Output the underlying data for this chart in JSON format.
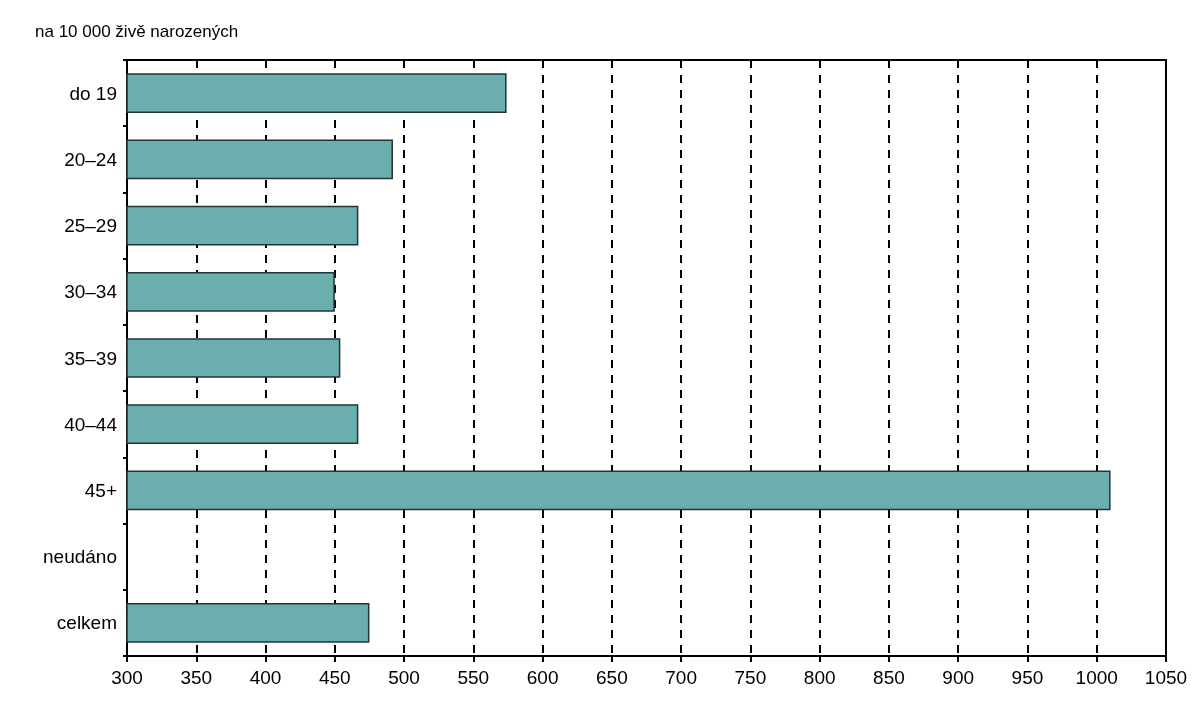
{
  "chart_data": {
    "type": "bar",
    "orientation": "horizontal",
    "title": "na 10 000 živě narozených",
    "categories": [
      "do 19",
      "20–24",
      "25–29",
      "30–34",
      "35–39",
      "40–44",
      "45+",
      "neudáno",
      "celkem"
    ],
    "values": [
      574,
      492,
      467,
      450,
      454,
      467,
      1010,
      null,
      475
    ],
    "color": "#6aafae",
    "xlim": [
      300,
      1050
    ],
    "xticks": [
      300,
      350,
      400,
      450,
      500,
      550,
      600,
      650,
      700,
      750,
      800,
      850,
      900,
      950,
      1000,
      1050
    ],
    "grid": "x"
  }
}
